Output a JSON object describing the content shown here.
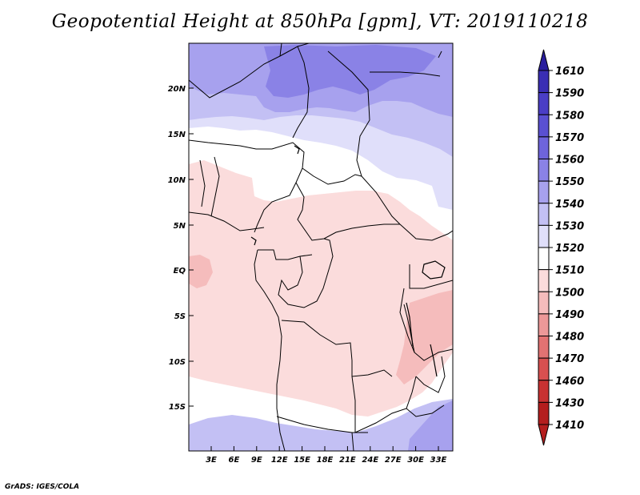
{
  "title": "Geopotential Height at 850hPa [gpm], VT: 2019110218",
  "credit": "GrADS: IGES/COLA",
  "map": {
    "lat_ticks": [
      "20N",
      "15N",
      "10N",
      "5N",
      "EQ",
      "5S",
      "10S",
      "15S"
    ],
    "lon_ticks": [
      "3E",
      "6E",
      "9E",
      "12E",
      "15E",
      "18E",
      "21E",
      "24E",
      "27E",
      "30E",
      "33E"
    ]
  },
  "colorbar": {
    "levels": [
      "1610",
      "1590",
      "1580",
      "1570",
      "1560",
      "1550",
      "1540",
      "1530",
      "1520",
      "1510",
      "1500",
      "1490",
      "1480",
      "1470",
      "1460",
      "1430",
      "1410"
    ],
    "colors": [
      "#2a1e9e",
      "#3a2eb4",
      "#4a3ec6",
      "#5a50d2",
      "#6e64dc",
      "#8a82e6",
      "#a7a1ee",
      "#c3c0f4",
      "#e0dffa",
      "#ffffff",
      "#fbdcdc",
      "#f5bcbc",
      "#ec9898",
      "#e27272",
      "#d85050",
      "#c83232",
      "#b41e1e"
    ]
  },
  "regions": {
    "high_north": "#8a82e6",
    "mid_north": "#a7a1ee",
    "light_north": "#c3c0f4",
    "pale_north": "#e0dffa",
    "neutral": "#ffffff",
    "low_pink": "#fbdcdc",
    "lower_pink": "#f5bcbc",
    "south_blue": "#c3c0f4",
    "southeast_blue": "#a7a1ee"
  }
}
